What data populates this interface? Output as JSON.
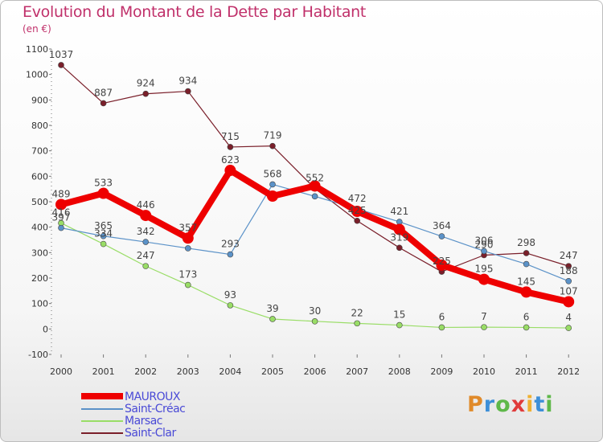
{
  "header": {
    "title": "Evolution du Montant de la Dette par Habitant",
    "subtitle": "(en €)"
  },
  "chart_data": {
    "type": "line",
    "x": [
      "2000",
      "2001",
      "2002",
      "2003",
      "2004",
      "2005",
      "2006",
      "2007",
      "2008",
      "2009",
      "2010",
      "2011",
      "2012"
    ],
    "ylim": [
      -100,
      1100
    ],
    "yticks": [
      -100,
      0,
      100,
      200,
      300,
      400,
      500,
      600,
      700,
      800,
      900,
      1000,
      1100
    ],
    "grid": false,
    "legend_position": "bottom-left",
    "series": [
      {
        "name": "MAUROUX",
        "color": "#ee0000",
        "width": 8,
        "point_radius": 7,
        "values": [
          489,
          533,
          446,
          357,
          623,
          522,
          562,
          462,
          391,
          251,
          195,
          145,
          107
        ],
        "labels": [
          "489",
          "533",
          "446",
          "357",
          "623",
          "",
          "",
          "",
          "",
          "",
          "195",
          "145",
          "107"
        ]
      },
      {
        "name": "Saint-Créac",
        "color": "#5b92c8",
        "width": 1.2,
        "point_radius": 3.5,
        "values": [
          397,
          365,
          342,
          317,
          293,
          568,
          521,
          472,
          421,
          364,
          306,
          255,
          188
        ],
        "labels": [
          "397",
          "365",
          "342",
          "",
          "293",
          "568",
          "",
          "472",
          "421",
          "364",
          "306",
          "",
          "188"
        ]
      },
      {
        "name": "Marsac",
        "color": "#99dd66",
        "width": 1.2,
        "point_radius": 3.5,
        "values": [
          416,
          334,
          247,
          173,
          93,
          39,
          30,
          22,
          15,
          6,
          7,
          6,
          4
        ],
        "labels": [
          "416",
          "334",
          "247",
          "173",
          "93",
          "39",
          "30",
          "22",
          "15",
          "6",
          "7",
          "6",
          "4"
        ]
      },
      {
        "name": "Saint-Clar",
        "color": "#7a1f2a",
        "width": 1.2,
        "point_radius": 3.5,
        "values": [
          1037,
          887,
          924,
          934,
          715,
          719,
          552,
          425,
          319,
          225,
          290,
          298,
          247
        ],
        "labels": [
          "1037",
          "887",
          "924",
          "934",
          "715",
          "719",
          "552",
          "425",
          "319",
          "225",
          "290",
          "298",
          "247"
        ]
      }
    ]
  },
  "brand": {
    "text": "Proxiti",
    "letter_colors": [
      "#e08a2a",
      "#3d8fd8",
      "#5fb84a",
      "#e03b3b",
      "#f0b030",
      "#3d8fd8",
      "#5fb84a"
    ]
  }
}
